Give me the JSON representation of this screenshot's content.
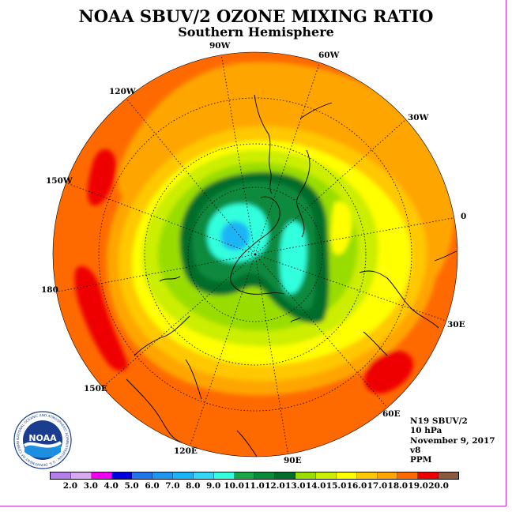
{
  "title": "NOAA SBUV/2 OZONE MIXING RATIO",
  "subtitle": "Southern Hemisphere",
  "longitude_labels": {
    "w90": "90W",
    "w60": "60W",
    "w30": "30W",
    "e0": "0",
    "e30": "30E",
    "e60": "60E",
    "e90": "90E",
    "e120": "120E",
    "e150": "150E",
    "e180": "180",
    "w150": "150W",
    "w120": "120W"
  },
  "info": {
    "instrument": "N19 SBUV/2",
    "level": "10 hPa",
    "date": "November 9, 2017",
    "version": "v8",
    "units": "PPM"
  },
  "logo": {
    "text": "NOAA",
    "ring_text": "NATIONAL OCEANIC AND ATMOSPHERIC ADMINISTRATION · U.S. DEPARTMENT OF COMMERCE"
  },
  "colorbar": {
    "ticks": [
      "2.0",
      "3.0",
      "4.0",
      "5.0",
      "6.0",
      "7.0",
      "8.0",
      "9.0",
      "10.0",
      "11.0",
      "12.0",
      "13.0",
      "14.0",
      "15.0",
      "16.0",
      "17.0",
      "18.0",
      "19.0",
      "20.0"
    ],
    "colors": [
      "#b57ee8",
      "#d9a8f0",
      "#ee00ee",
      "#0000dd",
      "#1f75e8",
      "#1e96f0",
      "#1ab4f5",
      "#33d6f5",
      "#33ffdd",
      "#18a848",
      "#0c8a3c",
      "#006d2c",
      "#99dd00",
      "#ccee00",
      "#ffff00",
      "#ffc800",
      "#ffa500",
      "#ff6a00",
      "#ee0000",
      "#8b5a3c"
    ]
  },
  "colors": {
    "frame": "#cc33cc",
    "outer_field": "#ff6a00"
  }
}
